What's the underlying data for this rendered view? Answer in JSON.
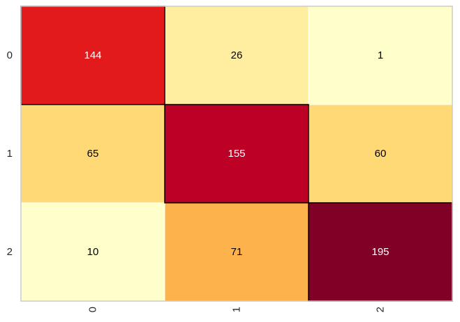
{
  "chart_data": {
    "type": "heatmap",
    "title": "",
    "xlabel": "",
    "ylabel": "",
    "x_categories": [
      "0",
      "1",
      "2"
    ],
    "y_categories": [
      "0",
      "1",
      "2"
    ],
    "values": [
      [
        144,
        26,
        1
      ],
      [
        65,
        155,
        60
      ],
      [
        10,
        71,
        195
      ]
    ],
    "cell_colors": [
      [
        "#e31a1c",
        "#ffeda0",
        "#ffffcc"
      ],
      [
        "#fed976",
        "#bd0026",
        "#fed976"
      ],
      [
        "#ffffcc",
        "#feb24c",
        "#800026"
      ]
    ],
    "text_colors": [
      [
        "#ffffff",
        "#000000",
        "#000000"
      ],
      [
        "#000000",
        "#ffffff",
        "#000000"
      ],
      [
        "#000000",
        "#000000",
        "#ffffff"
      ]
    ],
    "colormap": "YlOrRd",
    "grid": false,
    "diagonal_outlined": true
  }
}
